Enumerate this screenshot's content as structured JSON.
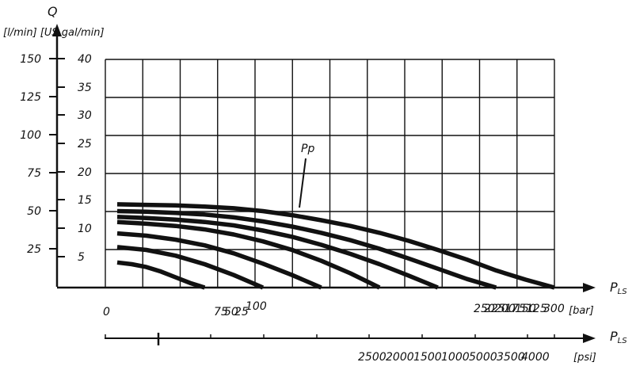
{
  "chart_data": {
    "type": "line",
    "axes": {
      "q_label": "Q",
      "q_units": "[l/min] [US gal/min]",
      "lpm_ticks": [
        "25",
        "50",
        "75",
        "100",
        "125",
        "150"
      ],
      "gpm_ticks": [
        "5",
        "10",
        "15",
        "20",
        "25",
        "30",
        "35",
        "40"
      ],
      "p_label": "P",
      "p_sub": "LS",
      "bar_unit": "[bar]",
      "psi_unit": "[psi]",
      "bar_ticks": [
        "0",
        "75",
        "50",
        "25",
        "100",
        "250",
        "225",
        "200",
        "175",
        "150",
        "125",
        "300"
      ],
      "psi_ticks": [
        "2500",
        "2000",
        "1500",
        "1000",
        "5000",
        "3500",
        "4000"
      ]
    },
    "series_label": "Pp",
    "ylim_gpm": [
      0,
      40
    ],
    "xlim_bar": [
      0,
      300
    ],
    "series": [
      {
        "x": [
          0,
          20,
          40,
          60,
          80,
          100,
          120,
          140,
          160,
          180,
          200,
          220,
          240,
          260,
          280,
          300
        ],
        "y": [
          14.6,
          14.5,
          14.4,
          14.2,
          13.9,
          13.4,
          12.7,
          11.8,
          10.8,
          9.6,
          8.2,
          6.6,
          4.9,
          3.0,
          1.4,
          0
        ]
      },
      {
        "x": [
          0,
          20,
          40,
          60,
          80,
          100,
          120,
          140,
          160,
          180,
          200,
          220,
          240,
          260
        ],
        "y": [
          13.4,
          13.3,
          13.1,
          12.8,
          12.3,
          11.6,
          10.7,
          9.6,
          8.3,
          6.8,
          5.1,
          3.3,
          1.5,
          0
        ]
      },
      {
        "x": [
          0,
          20,
          40,
          60,
          80,
          100,
          120,
          140,
          160,
          180,
          200,
          220
        ],
        "y": [
          12.4,
          12.2,
          11.9,
          11.5,
          10.9,
          10.0,
          8.9,
          7.5,
          5.9,
          4.1,
          2.1,
          0
        ]
      },
      {
        "x": [
          0,
          20,
          40,
          60,
          80,
          100,
          120,
          140,
          160,
          180
        ],
        "y": [
          11.5,
          11.2,
          10.8,
          10.2,
          9.3,
          8.1,
          6.6,
          4.7,
          2.5,
          0
        ]
      },
      {
        "x": [
          0,
          20,
          40,
          60,
          80,
          100,
          120,
          140
        ],
        "y": [
          9.5,
          9.1,
          8.4,
          7.4,
          6.0,
          4.2,
          2.2,
          0
        ]
      },
      {
        "x": [
          0,
          20,
          40,
          60,
          80,
          100
        ],
        "y": [
          7.1,
          6.6,
          5.6,
          4.1,
          2.2,
          0
        ]
      },
      {
        "x": [
          0,
          10,
          20,
          30,
          40,
          50,
          60
        ],
        "y": [
          4.4,
          4.1,
          3.6,
          2.8,
          1.8,
          0.8,
          0
        ]
      }
    ]
  }
}
